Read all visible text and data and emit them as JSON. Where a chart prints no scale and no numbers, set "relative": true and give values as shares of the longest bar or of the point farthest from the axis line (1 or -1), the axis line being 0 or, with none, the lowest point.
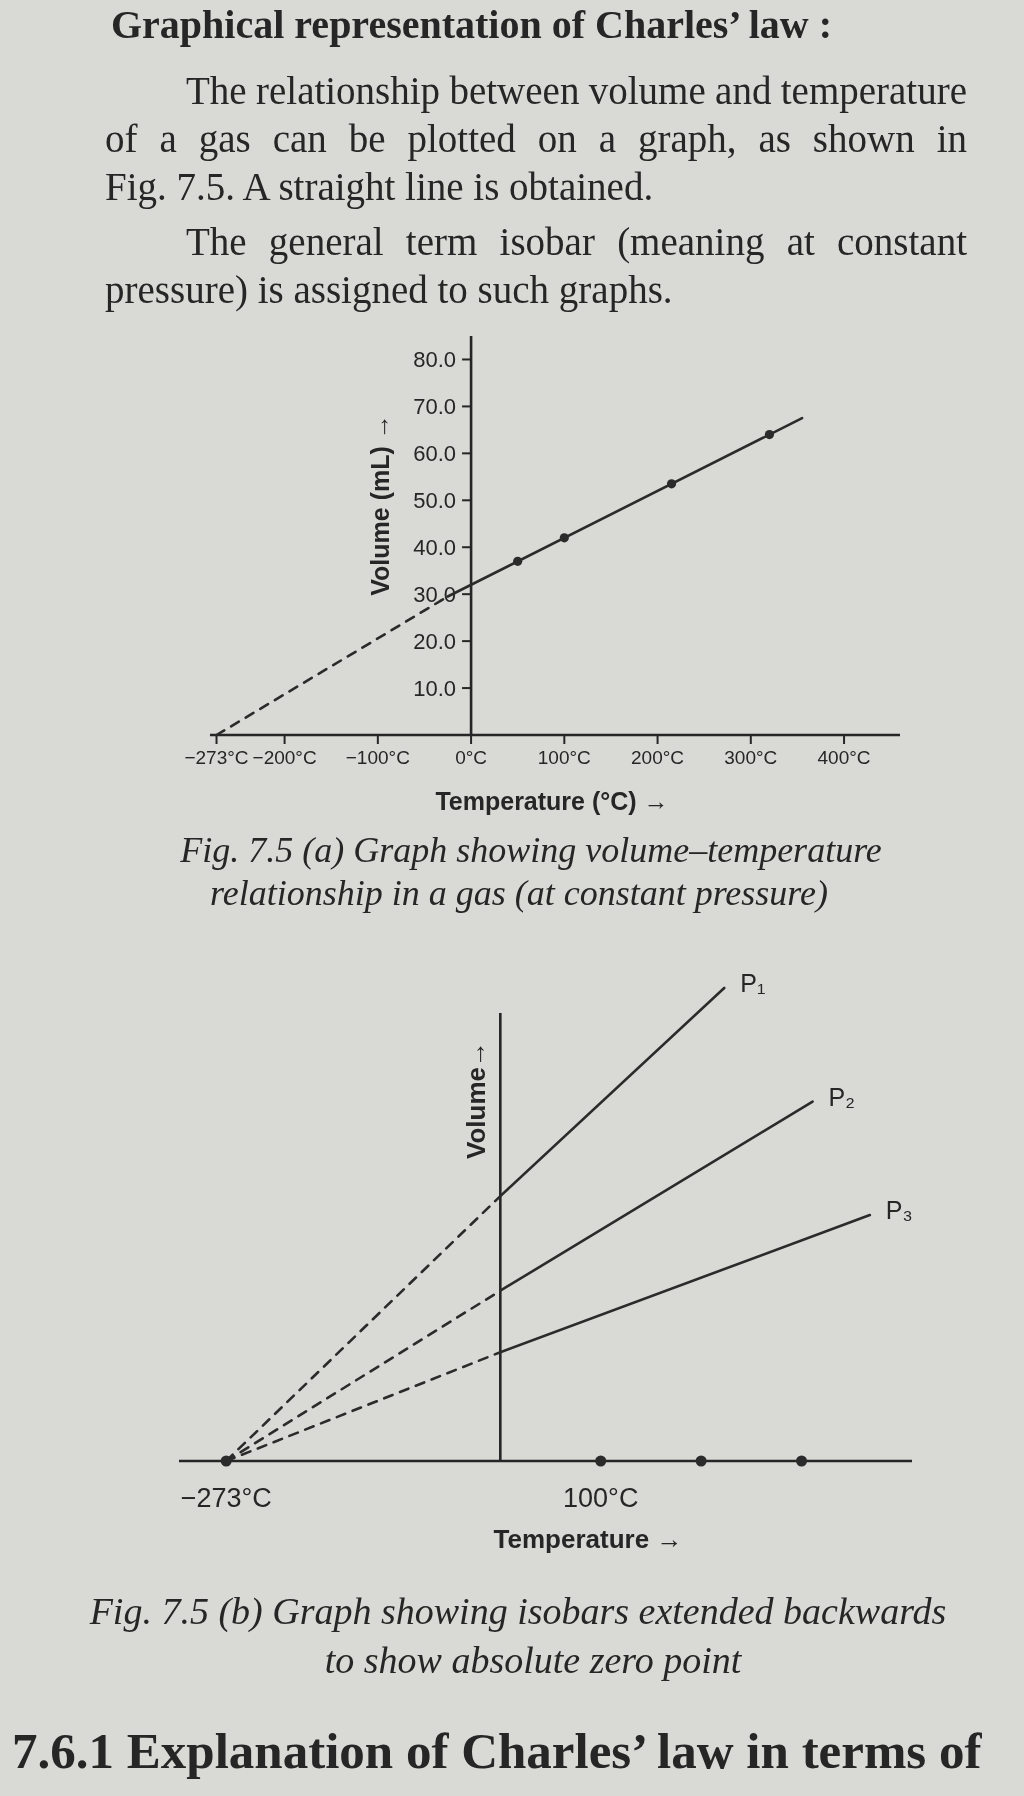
{
  "chart_data": [
    {
      "type": "line",
      "title": "Graphical representation of Charles’ law :",
      "subtitle": "The relationship between volume and temperature\nof a gas can be plotted on a graph, as shown in\nFig. 7.5. A straight line is obtained.\n\nThe general term isobar (meaning at constant\npressure) is assigned to such graphs.",
      "xlabel": "Temperature (°C) →",
      "ylabel": "Volume (mL) →",
      "annotations": [
        "Fig. 7.5 (a) Graph showing volume–temperature\nrelationship in a gas (at constant pressure)"
      ],
      "series": [
        {
          "color": "#2b2b2b",
          "line_style": "dashed",
          "x": [
            -273,
            -25
          ],
          "values": [
            0,
            29.5
          ]
        },
        {
          "color": "#2b2b2b",
          "line_style": "solid",
          "x": [
            -25,
            355
          ],
          "values": [
            29.5,
            67.5
          ]
        },
        {
          "type": "scatter",
          "color": "#2b2b2b",
          "marker": "circle",
          "x": [
            50,
            100,
            215,
            320
          ],
          "values": [
            37,
            42,
            53.5,
            64
          ]
        }
      ],
      "xlim": [
        -280,
        460
      ],
      "xticks": [
        {
          "value": -273,
          "label": "−273°C"
        },
        {
          "value": -200,
          "label": "−200°C"
        },
        {
          "value": -100,
          "label": "−100°C"
        },
        {
          "value": 0,
          "label": "0°C"
        },
        {
          "value": 100,
          "label": "100°C"
        },
        {
          "value": 200,
          "label": "200°C"
        },
        {
          "value": 300,
          "label": "300°C"
        },
        {
          "value": 400,
          "label": "400°C"
        }
      ],
      "ylim": [
        0,
        85
      ],
      "yticks": [
        {
          "value": 10,
          "label": "10.0"
        },
        {
          "value": 20,
          "label": "20.0"
        },
        {
          "value": 30,
          "label": "30.0"
        },
        {
          "value": 40,
          "label": "40.0"
        },
        {
          "value": 50,
          "label": "50.0"
        },
        {
          "value": 60,
          "label": "60.0"
        },
        {
          "value": 70,
          "label": "70.0"
        },
        {
          "value": 80,
          "label": "80.0"
        }
      ]
    },
    {
      "type": "line",
      "relative": true,
      "xlabel": "Temperature →",
      "ylabel": "Volume→",
      "annotations": [
        "Fig. 7.5 (b) Graph showing isobars extended backwards\nto show absolute zero point",
        "7.6.1 Explanation of Charles’ law in terms of"
      ],
      "xlim": [
        -320,
        410
      ],
      "xticks": [
        {
          "value": -273,
          "label": "−273°C"
        },
        {
          "value": 100,
          "label": "100°C"
        }
      ],
      "series": [
        {
          "name": "P₁",
          "color": "#2b2b2b",
          "line_style": "solid",
          "x": [
            0,
            223
          ],
          "values": [
            0.56,
            1
          ]
        },
        {
          "color": "#2b2b2b",
          "line_style": "dashed",
          "x": [
            -273,
            0
          ],
          "values": [
            0,
            0.56
          ]
        },
        {
          "name": "P₂",
          "color": "#2b2b2b",
          "line_style": "solid",
          "x": [
            0,
            311
          ],
          "values": [
            0.36,
            0.76
          ]
        },
        {
          "color": "#2b2b2b",
          "line_style": "dashed",
          "x": [
            -273,
            0
          ],
          "values": [
            0,
            0.36
          ]
        },
        {
          "name": "P₃",
          "color": "#2b2b2b",
          "line_style": "solid",
          "x": [
            0,
            368
          ],
          "values": [
            0.23,
            0.52
          ]
        },
        {
          "color": "#2b2b2b",
          "line_style": "dashed",
          "x": [
            -273,
            0
          ],
          "values": [
            0,
            0.23
          ]
        },
        {
          "type": "scatter",
          "color": "#2b2b2b",
          "marker": "circle",
          "x": [
            -273,
            100,
            200,
            300
          ],
          "values": [
            0,
            0,
            0,
            0
          ]
        }
      ]
    }
  ]
}
